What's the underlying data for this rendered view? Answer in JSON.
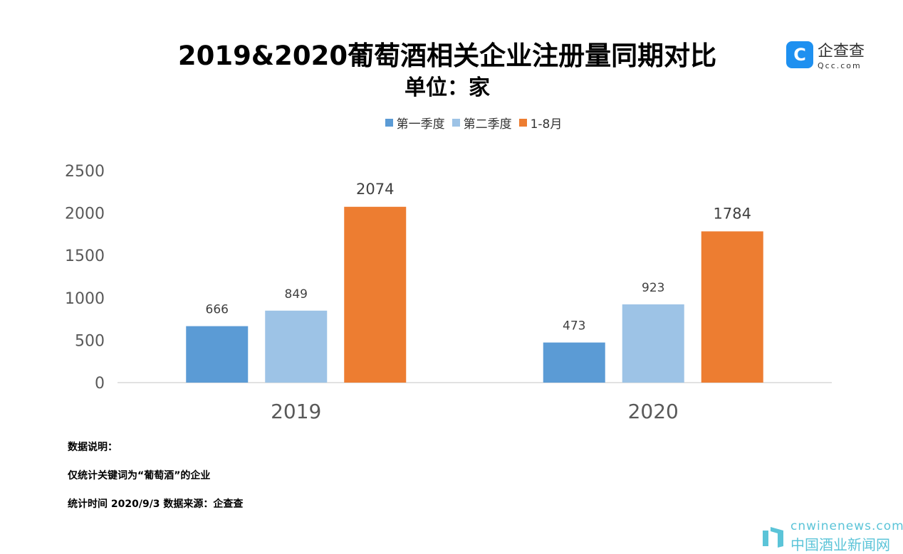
{
  "chart_data": {
    "type": "bar",
    "title": "2019&2020葡萄酒相关企业注册量同期对比",
    "subtitle": "单位：家",
    "categories": [
      "2019",
      "2020"
    ],
    "series": [
      {
        "name": "第一季度",
        "values": [
          666,
          473
        ],
        "color": "#5B9BD5"
      },
      {
        "name": "第二季度",
        "values": [
          849,
          923
        ],
        "color": "#9DC3E6"
      },
      {
        "name": "1-8月",
        "values": [
          2074,
          1784
        ],
        "color": "#ED7D31"
      }
    ],
    "yticks": [
      "0",
      "500",
      "1000",
      "1500",
      "2000",
      "2500"
    ],
    "ylim": [
      0,
      2500
    ],
    "legend": "top",
    "grid": false
  },
  "notes": [
    "数据说明：",
    "仅统计关键词为“葡萄酒”的企业",
    "统计时间 2020/9/3  数据来源：企查查"
  ],
  "logo": {
    "icon": "C",
    "name": "企查查",
    "domain": "Qcc.com"
  },
  "watermark": {
    "domain": "cnwinenews.com",
    "name": "中国酒业新闻网"
  }
}
